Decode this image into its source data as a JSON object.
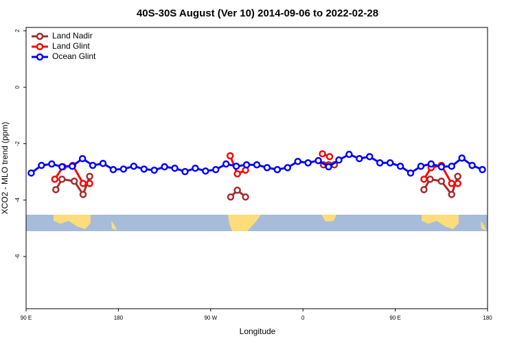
{
  "chart_data": {
    "type": "line",
    "title": "40S-30S August (Ver 10)   2014-09-06 to 2022-02-28",
    "xlabel": "Longitude",
    "ylabel": "XCO2 - MLO trend (ppm)",
    "xlim": [
      90,
      540
    ],
    "ylim": [
      -7.85,
      2.12
    ],
    "xticks": [
      {
        "value": 90,
        "label": "90 E"
      },
      180,
      {
        "value": 270,
        "label": "90 W"
      },
      {
        "value": 360,
        "label": "0"
      },
      {
        "value": 450,
        "label": "90 E"
      },
      {
        "value": 540,
        "label": "180"
      }
    ],
    "yticks": [
      -6,
      -4,
      -2,
      0,
      2
    ],
    "legend": "top-left",
    "series": [
      {
        "name": "Land Nadir",
        "color": "#a52a2a",
        "x": [
          119,
          125,
          137,
          145.6,
          152,
          null,
          289.5,
          296,
          304,
          null,
          380,
          385,
          390.6,
          null,
          478,
          484,
          495,
          505,
          511
        ],
        "values": [
          -3.63,
          -3.26,
          -3.33,
          -3.8,
          -3.16,
          null,
          -3.89,
          -3.65,
          -3.89,
          null,
          -2.75,
          -2.75,
          -2.75,
          null,
          -3.63,
          -3.26,
          -3.33,
          -3.8,
          -3.16
        ]
      },
      {
        "name": "Land Glint",
        "color": "#ff0000",
        "x": [
          118,
          126,
          135.5,
          145.6,
          152,
          null,
          289,
          296,
          304,
          null,
          379,
          386,
          null,
          478,
          485,
          495,
          505,
          511
        ],
        "values": [
          -3.26,
          -2.82,
          -2.77,
          -3.41,
          -3.41,
          null,
          -2.43,
          -3.07,
          -2.94,
          null,
          -2.36,
          -2.46,
          null,
          -3.26,
          -2.85,
          -2.77,
          -3.41,
          -3.41
        ]
      },
      {
        "name": "Ocean Glint",
        "color": "#0000ff",
        "x": [
          95,
          105,
          115,
          125,
          135,
          145,
          155,
          165,
          175,
          185,
          195,
          205,
          215,
          225,
          235,
          245,
          255,
          265,
          275,
          285,
          295,
          305,
          315,
          325,
          335,
          345,
          355,
          365,
          375,
          385,
          395,
          405,
          415,
          425,
          435,
          445,
          455,
          465,
          475,
          485,
          495,
          505,
          515,
          525,
          535
        ],
        "values": [
          -3.04,
          -2.77,
          -2.72,
          -2.82,
          -2.8,
          -2.53,
          -2.77,
          -2.7,
          -2.92,
          -2.9,
          -2.8,
          -2.9,
          -2.94,
          -2.82,
          -2.87,
          -2.99,
          -2.87,
          -2.97,
          -2.92,
          -2.72,
          -2.8,
          -2.75,
          -2.75,
          -2.85,
          -2.92,
          -2.85,
          -2.63,
          -2.68,
          -2.6,
          -2.82,
          -2.58,
          -2.38,
          -2.53,
          -2.46,
          -2.68,
          -2.68,
          -2.8,
          -3.04,
          -2.8,
          -2.72,
          -2.82,
          -2.8,
          -2.51,
          -2.77,
          -2.92
        ]
      }
    ]
  }
}
